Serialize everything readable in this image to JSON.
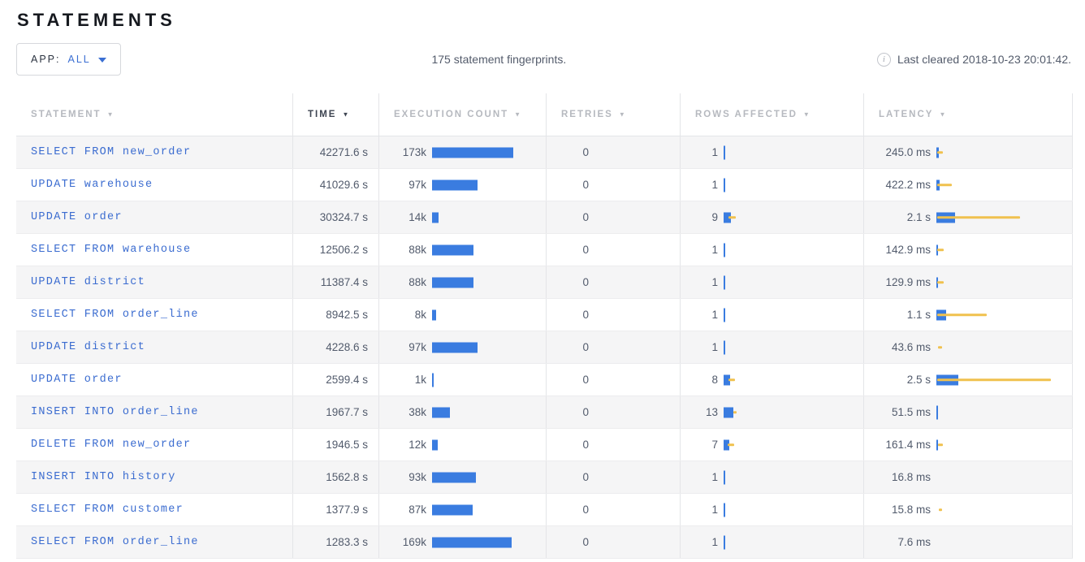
{
  "header": {
    "title": "STATEMENTS",
    "app_filter": {
      "label": "APP:",
      "value": "ALL"
    },
    "summary": "175 statement fingerprints.",
    "info_icon": "i",
    "last_cleared": "Last cleared 2018-10-23 20:01:42."
  },
  "table": {
    "sort_arrow": "▼",
    "columns": [
      {
        "id": "statement",
        "label": "STATEMENT",
        "active": false
      },
      {
        "id": "time",
        "label": "TIME",
        "active": true
      },
      {
        "id": "execution-count",
        "label": "EXECUTION COUNT",
        "active": false
      },
      {
        "id": "retries",
        "label": "RETRIES",
        "active": false
      },
      {
        "id": "rows-affected",
        "label": "ROWS AFFECTED",
        "active": false
      },
      {
        "id": "latency",
        "label": "LATENCY",
        "active": false
      }
    ],
    "rows": [
      {
        "statement": "SELECT FROM new_order",
        "time": "42271.6 s",
        "exec_count": "173k",
        "exec_bar": 100,
        "retries": "0",
        "rows_affected": "1",
        "rows_bar": 1,
        "rows_dev": [
          0,
          0
        ],
        "latency": "245.0 ms",
        "lat_bar": 3,
        "lat_dev": [
          1,
          7
        ]
      },
      {
        "statement": "UPDATE warehouse",
        "time": "41029.6 s",
        "exec_count": "97k",
        "exec_bar": 56,
        "retries": "0",
        "rows_affected": "1",
        "rows_bar": 1,
        "rows_dev": [
          0,
          0
        ],
        "latency": "422.2 ms",
        "lat_bar": 4,
        "lat_dev": [
          1,
          18
        ]
      },
      {
        "statement": "UPDATE order",
        "time": "30324.7 s",
        "exec_count": "14k",
        "exec_bar": 8,
        "retries": "0",
        "rows_affected": "9",
        "rows_bar": 9,
        "rows_dev": [
          6,
          9
        ],
        "latency": "2.1 s",
        "lat_bar": 23,
        "lat_dev": [
          1,
          102
        ]
      },
      {
        "statement": "SELECT FROM warehouse",
        "time": "12506.2 s",
        "exec_count": "88k",
        "exec_bar": 51,
        "retries": "0",
        "rows_affected": "1",
        "rows_bar": 1,
        "rows_dev": [
          0,
          0
        ],
        "latency": "142.9 ms",
        "lat_bar": 2,
        "lat_dev": [
          1,
          8
        ]
      },
      {
        "statement": "UPDATE district",
        "time": "11387.4 s",
        "exec_count": "88k",
        "exec_bar": 51,
        "retries": "0",
        "rows_affected": "1",
        "rows_bar": 1,
        "rows_dev": [
          0,
          0
        ],
        "latency": "129.9 ms",
        "lat_bar": 2,
        "lat_dev": [
          1,
          8
        ]
      },
      {
        "statement": "SELECT FROM order_line",
        "time": "8942.5 s",
        "exec_count": "8k",
        "exec_bar": 5,
        "retries": "0",
        "rows_affected": "1",
        "rows_bar": 1,
        "rows_dev": [
          0,
          0
        ],
        "latency": "1.1 s",
        "lat_bar": 12,
        "lat_dev": [
          1,
          61
        ]
      },
      {
        "statement": "UPDATE district",
        "time": "4228.6 s",
        "exec_count": "97k",
        "exec_bar": 56,
        "retries": "0",
        "rows_affected": "1",
        "rows_bar": 1,
        "rows_dev": [
          0,
          0
        ],
        "latency": "43.6 ms",
        "lat_bar": 0,
        "lat_dev": [
          2,
          5
        ]
      },
      {
        "statement": "UPDATE order",
        "time": "2599.4 s",
        "exec_count": "1k",
        "exec_bar": 1,
        "retries": "0",
        "rows_affected": "8",
        "rows_bar": 8,
        "rows_dev": [
          6,
          8
        ],
        "latency": "2.5 s",
        "lat_bar": 27,
        "lat_dev": [
          1,
          140
        ]
      },
      {
        "statement": "INSERT INTO order_line",
        "time": "1967.7 s",
        "exec_count": "38k",
        "exec_bar": 22,
        "retries": "0",
        "rows_affected": "13",
        "rows_bar": 12,
        "rows_dev": [
          12,
          4
        ],
        "latency": "51.5 ms",
        "lat_bar": 1,
        "lat_dev": [
          0,
          0
        ]
      },
      {
        "statement": "DELETE FROM new_order",
        "time": "1946.5 s",
        "exec_count": "12k",
        "exec_bar": 7,
        "retries": "0",
        "rows_affected": "7",
        "rows_bar": 7,
        "rows_dev": [
          5,
          8
        ],
        "latency": "161.4 ms",
        "lat_bar": 2,
        "lat_dev": [
          2,
          6
        ]
      },
      {
        "statement": "INSERT INTO history",
        "time": "1562.8 s",
        "exec_count": "93k",
        "exec_bar": 54,
        "retries": "0",
        "rows_affected": "1",
        "rows_bar": 1,
        "rows_dev": [
          0,
          0
        ],
        "latency": "16.8 ms",
        "lat_bar": 0,
        "lat_dev": [
          0,
          0
        ]
      },
      {
        "statement": "SELECT FROM customer",
        "time": "1377.9 s",
        "exec_count": "87k",
        "exec_bar": 50,
        "retries": "0",
        "rows_affected": "1",
        "rows_bar": 1,
        "rows_dev": [
          0,
          0
        ],
        "latency": "15.8 ms",
        "lat_bar": 0,
        "lat_dev": [
          3,
          4
        ]
      },
      {
        "statement": "SELECT FROM order_line",
        "time": "1283.3 s",
        "exec_count": "169k",
        "exec_bar": 98,
        "retries": "0",
        "rows_affected": "1",
        "rows_bar": 1,
        "rows_dev": [
          0,
          0
        ],
        "latency": "7.6 ms",
        "lat_bar": 0,
        "lat_dev": [
          0,
          0
        ]
      }
    ]
  },
  "colors": {
    "bar_blue": "#3a7ce0",
    "dev_yellow": "#f0c14e",
    "link_blue": "#3b6cd0",
    "active_header": "#3e4552",
    "inactive_header": "#b6b9bf"
  }
}
